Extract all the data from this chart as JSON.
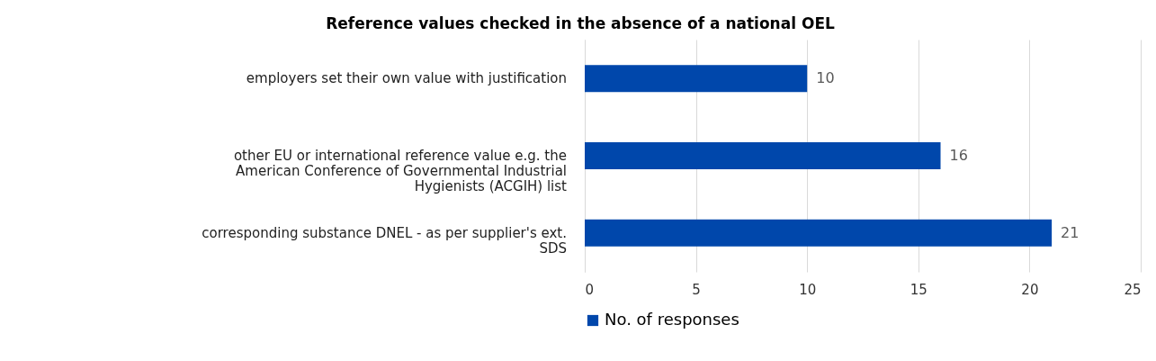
{
  "chart_data": {
    "type": "bar",
    "orientation": "horizontal",
    "title": "Reference values checked in the absence of a national OEL",
    "categories": [
      "employers set their own value with justification",
      "other EU or international reference value e.g. the American Conference of Governmental Industrial Hygienists (ACGIH) list",
      "corresponding substance DNEL - as per supplier's ext. SDS"
    ],
    "series": [
      {
        "name": "No. of responses",
        "color": "#0047ab",
        "values": [
          10,
          16,
          21
        ]
      }
    ],
    "xlim": [
      0,
      25
    ],
    "xticks": [
      0,
      5,
      10,
      15,
      20,
      25
    ],
    "grid": "x",
    "legend": "bottom",
    "data_labels": true
  }
}
